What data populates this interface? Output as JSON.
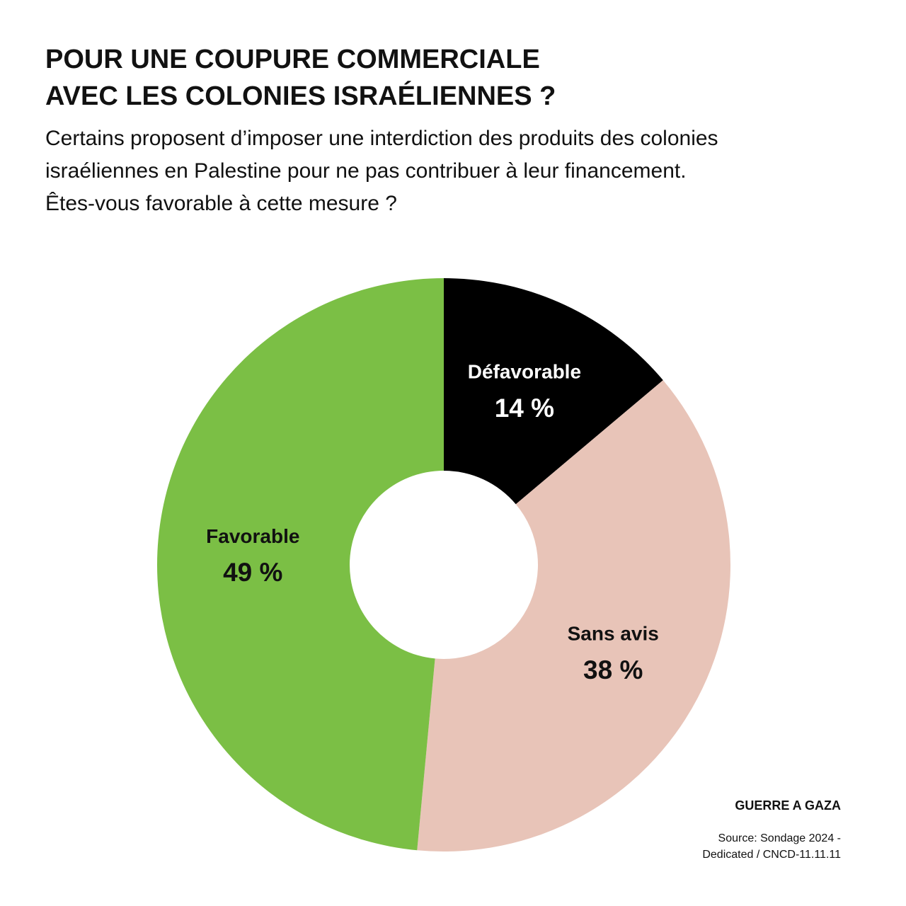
{
  "chart_data": {
    "type": "donut",
    "title": [
      "POUR UNE COUPURE COMMERCIALE",
      "AVEC LES COLONIES ISRAÉLIENNES ?"
    ],
    "subtitle": [
      "Certains proposent d’imposer une interdiction des produits des colonies",
      "israéliennes en Palestine pour ne pas contribuer à leur financement.",
      "Êtes-vous favorable à cette mesure ?"
    ],
    "categories": [
      "Défavorable",
      "Sans avis",
      "Favorable"
    ],
    "values": [
      14,
      38,
      49
    ],
    "value_labels": [
      "14 %",
      "38 %",
      "49 %"
    ],
    "colors": [
      "#000000",
      "#e8c4b8",
      "#7bbf45"
    ],
    "label_colors": [
      "#ffffff",
      "#111111",
      "#111111"
    ],
    "tag": "GUERRE A GAZA",
    "source": [
      "Source: Sondage 2024 -",
      "Dedicated /  CNCD-11.11.11"
    ]
  }
}
